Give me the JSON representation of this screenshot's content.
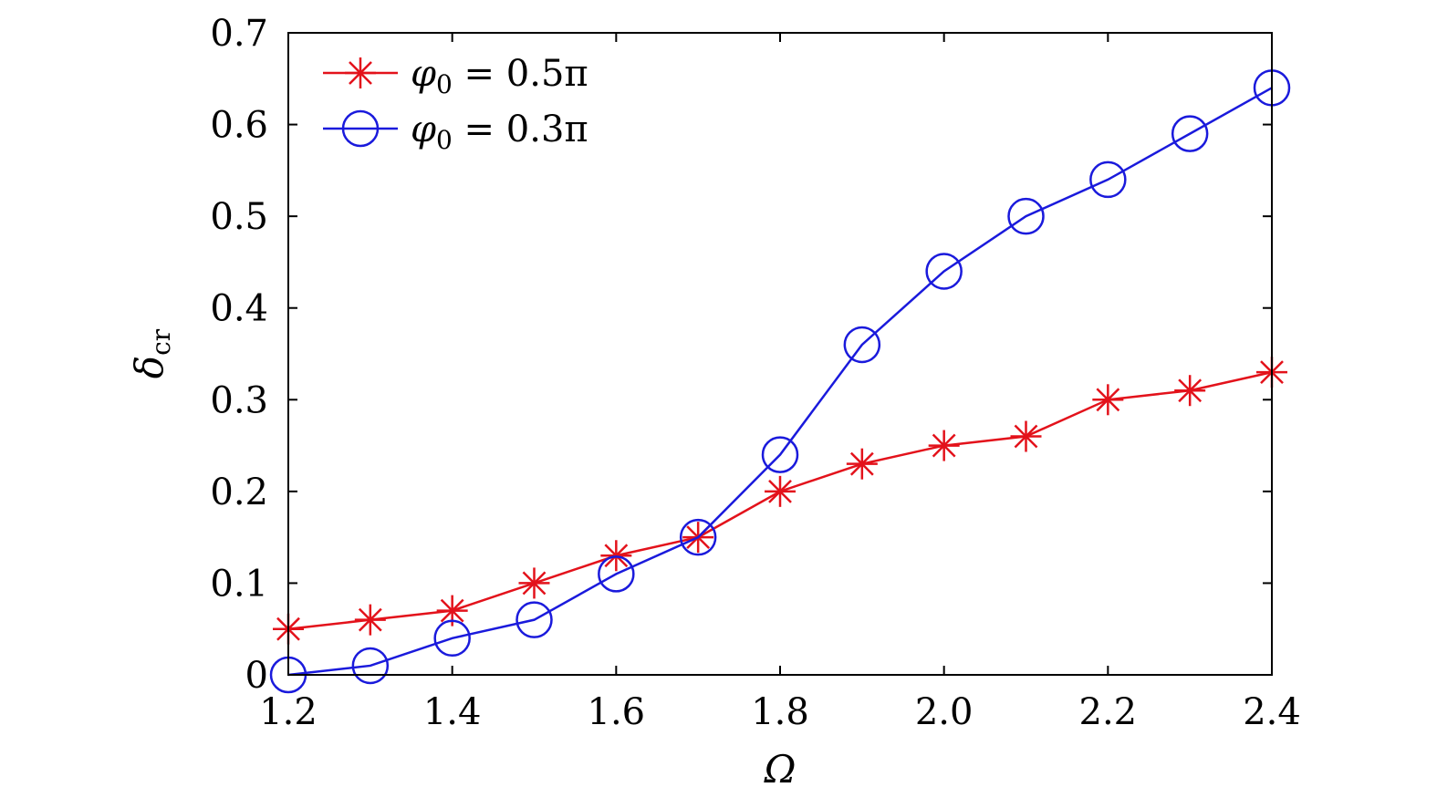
{
  "chart_data": {
    "type": "line",
    "title": "",
    "xlabel": "Ω",
    "ylabel": "δcr",
    "ylabel_main": "δ",
    "ylabel_sub": "cr",
    "xlim": [
      1.2,
      2.4
    ],
    "ylim": [
      0,
      0.7
    ],
    "xticks": [
      1.2,
      1.4,
      1.6,
      1.8,
      2.0,
      2.2,
      2.4
    ],
    "xtick_labels": [
      "1.2",
      "1.4",
      "1.6",
      "1.8",
      "2.0",
      "2.2",
      "2.4"
    ],
    "yticks": [
      0,
      0.1,
      0.2,
      0.3,
      0.4,
      0.5,
      0.6,
      0.7
    ],
    "ytick_labels": [
      "0",
      "0.1",
      "0.2",
      "0.3",
      "0.4",
      "0.5",
      "0.6",
      "0.7"
    ],
    "grid": false,
    "legend_position": "top-left",
    "x": [
      1.2,
      1.3,
      1.4,
      1.5,
      1.6,
      1.7,
      1.8,
      1.9,
      2.0,
      2.1,
      2.2,
      2.3,
      2.4
    ],
    "series": [
      {
        "name": "φ0 = 0.5π",
        "label_main": "φ",
        "label_sub": "0",
        "label_rest": " = 0.5π",
        "color": "#e3121b",
        "marker": "asterisk",
        "values": [
          0.05,
          0.06,
          0.07,
          0.1,
          0.13,
          0.15,
          0.2,
          0.23,
          0.25,
          0.26,
          0.3,
          0.31,
          0.33
        ]
      },
      {
        "name": "φ0 = 0.3π",
        "label_main": "φ",
        "label_sub": "0",
        "label_rest": " = 0.3π",
        "color": "#1a1adc",
        "marker": "circle",
        "values": [
          0.0,
          0.01,
          0.04,
          0.06,
          0.11,
          0.15,
          0.24,
          0.36,
          0.44,
          0.5,
          0.54,
          0.59,
          0.64
        ]
      }
    ]
  }
}
